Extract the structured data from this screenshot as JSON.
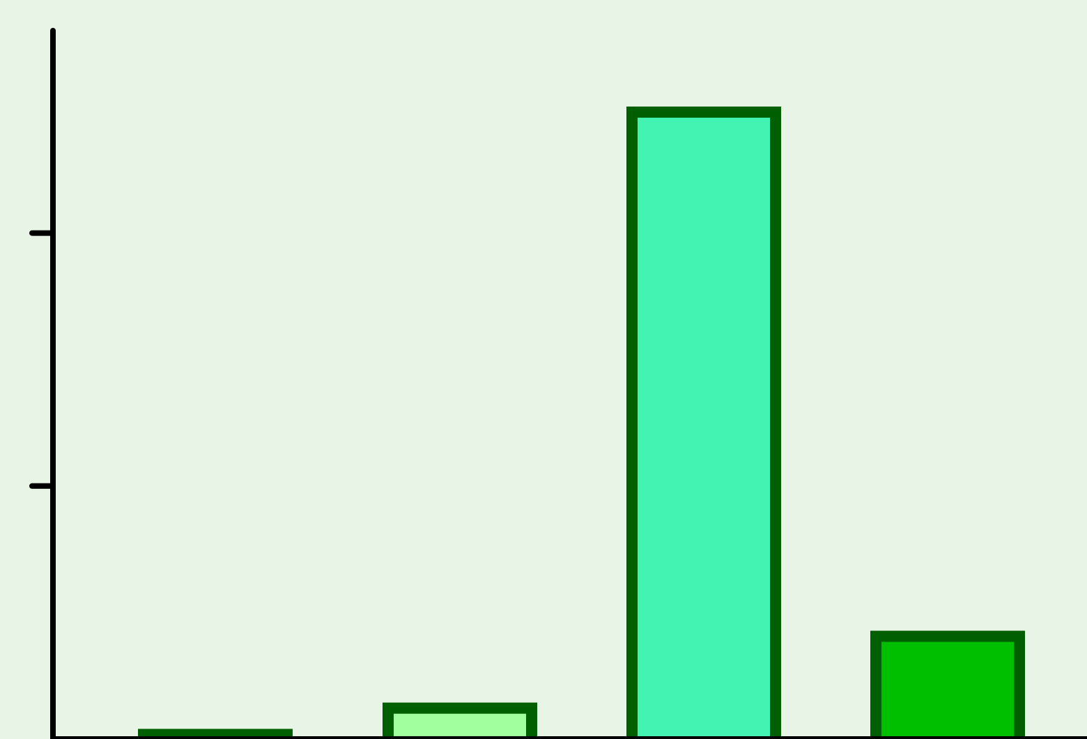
{
  "chart_data": {
    "type": "bar",
    "title": "",
    "xlabel": "",
    "ylabel": "",
    "categories": [
      "",
      "",
      "",
      ""
    ],
    "values": [
      2,
      7.2,
      125,
      21.4
    ],
    "ylim": [
      0,
      140
    ],
    "yticks": [
      50,
      100
    ],
    "grid": false,
    "legend": "none",
    "colors": {
      "background": "#e8f4e6",
      "bar_stroke": "#005f00",
      "axis": "#000000",
      "bar_fills": [
        "#d7f7ec",
        "#a1ff9d",
        "#43f3b1",
        "#00bf00"
      ]
    }
  }
}
